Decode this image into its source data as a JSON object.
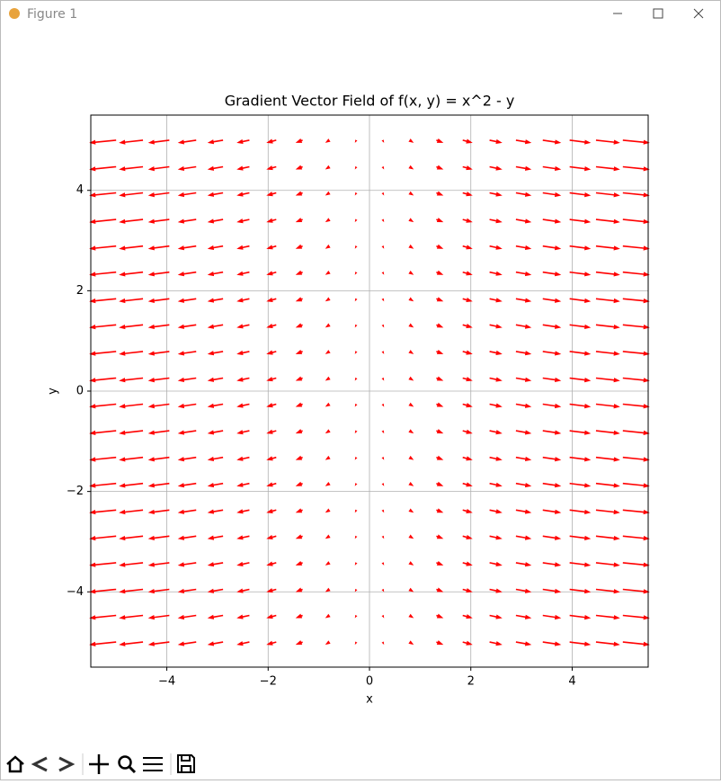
{
  "window_title": "Figure 1",
  "chart_data": {
    "type": "quiver",
    "title": "Gradient Vector Field of f(x, y) = x^2 - y",
    "xlabel": "x",
    "ylabel": "y",
    "x": [
      -5,
      -4.47,
      -3.95,
      -3.42,
      -2.89,
      -2.37,
      -1.84,
      -1.32,
      -0.79,
      -0.26,
      0.26,
      0.79,
      1.32,
      1.84,
      2.37,
      2.89,
      3.42,
      3.95,
      4.47,
      5
    ],
    "y": [
      -5,
      -4.47,
      -3.95,
      -3.42,
      -2.89,
      -2.37,
      -1.84,
      -1.32,
      -0.79,
      -0.26,
      0.26,
      0.79,
      1.32,
      1.84,
      2.37,
      2.89,
      3.42,
      3.95,
      4.47,
      5
    ],
    "u": [
      -10,
      -8.95,
      -7.89,
      -6.84,
      -5.79,
      -4.74,
      -3.68,
      -2.63,
      -1.58,
      -0.53,
      0.53,
      1.58,
      2.63,
      3.68,
      4.74,
      5.79,
      6.84,
      7.89,
      8.95,
      10
    ],
    "v": [
      -1,
      -1,
      -1,
      -1,
      -1,
      -1,
      -1,
      -1,
      -1,
      -1,
      -1,
      -1,
      -1,
      -1,
      -1,
      -1,
      -1,
      -1,
      -1,
      -1
    ],
    "color": "#ff0000",
    "xlim": [
      -5.5,
      5.5
    ],
    "ylim": [
      -5.5,
      5.5
    ],
    "xticks": [
      {
        "value": -4,
        "label": "−4"
      },
      {
        "value": -2,
        "label": "−2"
      },
      0,
      2,
      4
    ],
    "yticks": [
      {
        "value": -4,
        "label": "−4"
      },
      {
        "value": -2,
        "label": "−2"
      },
      0,
      2,
      4
    ],
    "grid": true
  }
}
